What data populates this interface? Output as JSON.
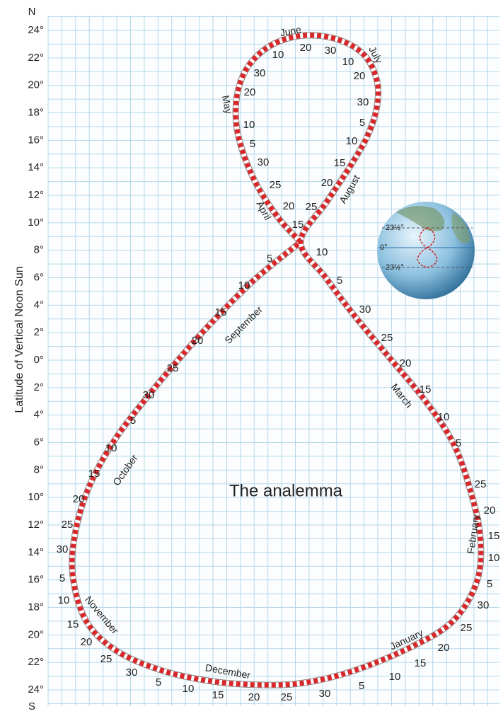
{
  "axis": {
    "north": "N",
    "south": "S",
    "title": "Latitude of Vertical Noon Sun",
    "ticks": [
      "24°",
      "22°",
      "20°",
      "18°",
      "16°",
      "14°",
      "12°",
      "10°",
      "8°",
      "6°",
      "4°",
      "2°",
      "0°",
      "2°",
      "4°",
      "6°",
      "8°",
      "10°",
      "12°",
      "14°",
      "16°",
      "18°",
      "20°",
      "22°",
      "24°"
    ]
  },
  "title": "The analemma",
  "months": [
    "June",
    "July",
    "May",
    "April",
    "August",
    "September",
    "March",
    "October",
    "February",
    "November",
    "January",
    "December"
  ],
  "days": [
    "10",
    "20",
    "30",
    "10",
    "20",
    "30",
    "5",
    "10",
    "15",
    "20",
    "25",
    "15",
    "10",
    "5",
    "30",
    "25",
    "20",
    "15",
    "10",
    "5",
    "25",
    "20",
    "15",
    "10",
    "5",
    "30",
    "25",
    "20",
    "15",
    "10",
    "5",
    "30",
    "25",
    "20",
    "15",
    "10",
    "5",
    "30",
    "25",
    "20",
    "15",
    "10",
    "5",
    "30",
    "25",
    "20",
    "15",
    "10",
    "5",
    "30",
    "25",
    "20",
    "15",
    "10",
    "5",
    "20",
    "25",
    "30",
    "5",
    "10",
    "20",
    "30"
  ],
  "globe": {
    "labels": [
      "23½°",
      "0°",
      "23½°"
    ]
  }
}
